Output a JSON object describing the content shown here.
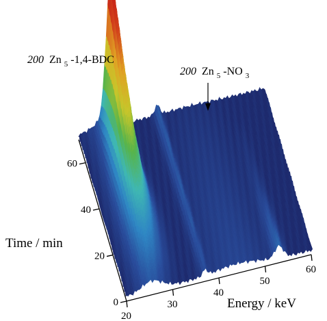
{
  "chart_data": {
    "type": "surface-3d",
    "xlabel": "Energy / keV",
    "ylabel": "Time / min",
    "x_ticks": [
      "20",
      "30",
      "40",
      "50",
      "60"
    ],
    "y_ticks": [
      "0",
      "20",
      "40",
      "60"
    ],
    "xlim": [
      20,
      60
    ],
    "ylim": [
      0,
      70
    ],
    "grid": false,
    "colormap": [
      "#1e2b6e",
      "#2a4d9c",
      "#2f86c4",
      "#3fb7b3",
      "#57b44a",
      "#c7c62b",
      "#e0a224",
      "#d2421c",
      "#c41a17"
    ],
    "series": [
      {
        "peak_energy_keV": 27,
        "annotation": {
          "index": "200",
          "formula_parts": [
            "Zn",
            "5",
            "-1,4-BDC"
          ]
        },
        "time_min": [
          0,
          5,
          10,
          15,
          20,
          25,
          30,
          35,
          40,
          45,
          50,
          55,
          60,
          65,
          70
        ],
        "relative_intensity": [
          0.02,
          0.04,
          0.07,
          0.1,
          0.14,
          0.19,
          0.25,
          0.32,
          0.4,
          0.49,
          0.59,
          0.69,
          0.8,
          0.9,
          1.0
        ]
      },
      {
        "peak_energy_keV": 37,
        "annotation": {
          "index": "200",
          "formula_parts": [
            "Zn",
            "5",
            "-NO",
            "3"
          ]
        },
        "time_min": [
          0,
          5,
          10,
          15,
          20,
          25,
          30,
          35,
          40,
          45,
          50,
          55,
          60,
          65,
          70
        ],
        "relative_intensity": [
          0.04,
          0.045,
          0.05,
          0.05,
          0.055,
          0.055,
          0.06,
          0.06,
          0.06,
          0.06,
          0.06,
          0.065,
          0.065,
          0.065,
          0.065
        ]
      },
      {
        "peak_energy_keV": 53,
        "time_min": [
          0,
          10,
          20,
          30,
          40,
          50,
          60,
          70
        ],
        "relative_intensity": [
          0.08,
          0.06,
          0.04,
          0.02,
          0.01,
          0.005,
          0.0,
          0.0
        ]
      }
    ]
  }
}
